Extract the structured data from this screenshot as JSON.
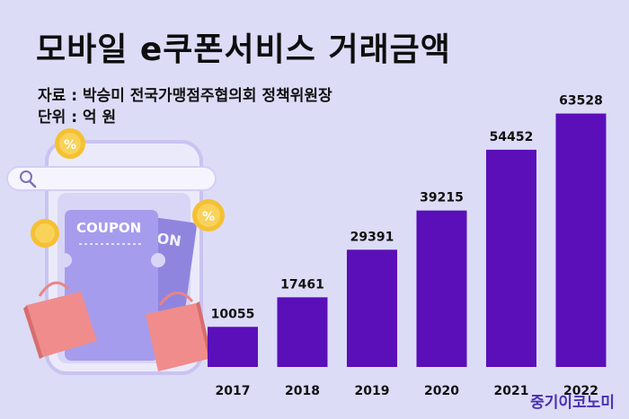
{
  "header": {
    "title": "모바일 e쿠폰서비스 거래금액",
    "source": "자료 : 박승미 전국가맹점주협의회 정책위원장",
    "unit": "단위 : 억 원"
  },
  "brand": {
    "name": "중기이코노미"
  },
  "illustration": {
    "coupon_text": "COUPON",
    "coupon_text2": "ON",
    "percent_symbol": "%"
  },
  "colors": {
    "bar": "#5a0fb8",
    "background": "#dcdcf7",
    "brand": "#4a2fb0"
  },
  "chart_data": {
    "type": "bar",
    "categories": [
      "2017",
      "2018",
      "2019",
      "2020",
      "2021",
      "2022"
    ],
    "values": [
      10055,
      17461,
      29391,
      39215,
      54452,
      63528
    ],
    "value_labels": [
      "10055",
      "17461",
      "29391",
      "39215",
      "54452",
      "63528"
    ],
    "title": "모바일 e쿠폰서비스 거래금액",
    "ylabel": "",
    "xlabel": "",
    "ylim": [
      0,
      65000
    ],
    "grid": false,
    "legend": "none"
  }
}
